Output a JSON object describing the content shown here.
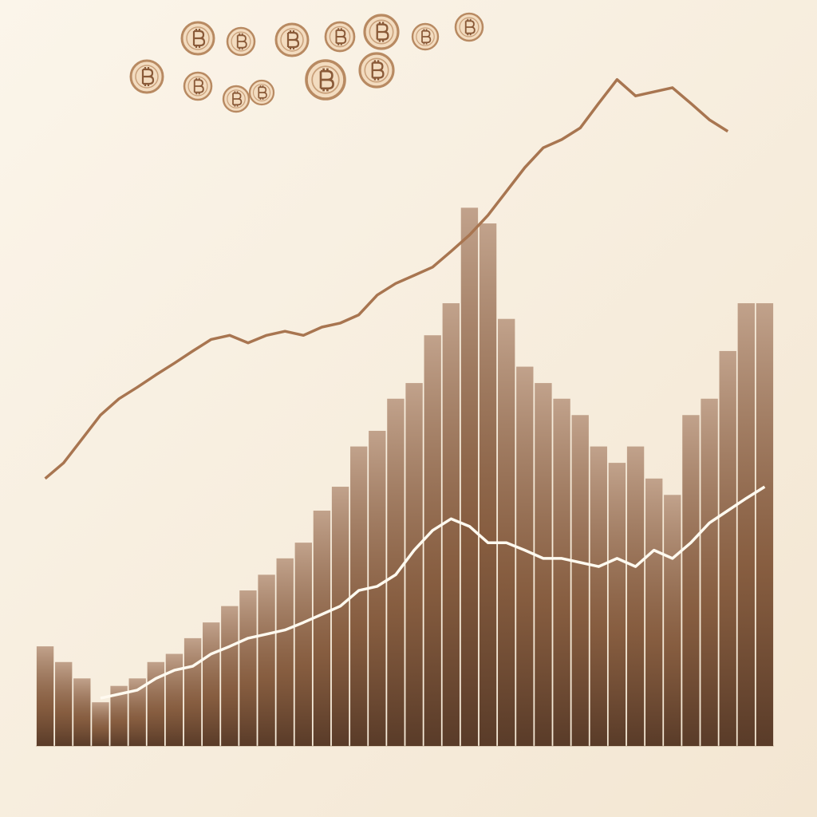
{
  "chart_data": {
    "type": "bar",
    "categories": [
      null,
      null,
      null,
      null,
      null,
      null,
      null,
      null,
      null,
      null,
      null,
      null,
      null,
      null,
      null,
      null,
      null,
      null,
      null,
      null,
      null,
      null,
      null,
      null,
      null,
      null,
      null,
      null,
      null,
      null,
      null,
      null,
      null,
      null,
      null,
      null,
      null,
      null,
      null,
      null
    ],
    "ylim": [
      0,
      100
    ],
    "series": [
      {
        "type": "bar",
        "color": "#a0704d",
        "values": [
          14.6,
          12.3,
          9.9,
          6.4,
          8.8,
          9.9,
          12.3,
          13.5,
          15.8,
          18.1,
          20.5,
          22.8,
          25.1,
          27.5,
          29.8,
          34.5,
          38.0,
          43.9,
          46.2,
          50.9,
          53.2,
          60.2,
          64.9,
          78.9,
          76.6,
          62.6,
          55.6,
          53.2,
          50.9,
          48.5,
          43.9,
          41.5,
          43.9,
          39.2,
          36.8,
          48.5,
          50.9,
          57.9,
          64.9,
          64.9
        ]
      },
      {
        "type": "line",
        "color": "#a87550",
        "values": [
          39.2,
          41.5,
          45.0,
          48.5,
          50.9,
          52.6,
          54.4,
          56.1,
          57.9,
          59.6,
          60.2,
          59.1,
          60.2,
          60.8,
          60.2,
          61.4,
          62.0,
          63.2,
          66.1,
          67.8,
          69.0,
          70.2,
          72.5,
          74.9,
          77.8,
          81.3,
          84.8,
          87.7,
          88.9,
          90.6,
          94.2,
          97.7,
          95.3,
          95.9,
          96.5,
          94.2,
          91.8,
          90.1,
          null,
          null
        ]
      },
      {
        "type": "line",
        "color": "#fffaf0",
        "values": [
          null,
          null,
          null,
          7.0,
          7.6,
          8.2,
          9.9,
          11.1,
          11.7,
          13.5,
          14.6,
          15.8,
          16.4,
          17.0,
          18.1,
          19.3,
          20.5,
          22.8,
          23.4,
          25.1,
          28.7,
          31.6,
          33.3,
          32.2,
          29.8,
          29.8,
          28.7,
          27.5,
          27.5,
          26.9,
          26.3,
          27.5,
          26.3,
          28.7,
          27.5,
          29.8,
          32.7,
          34.5,
          36.3,
          38.0
        ]
      }
    ]
  }
}
